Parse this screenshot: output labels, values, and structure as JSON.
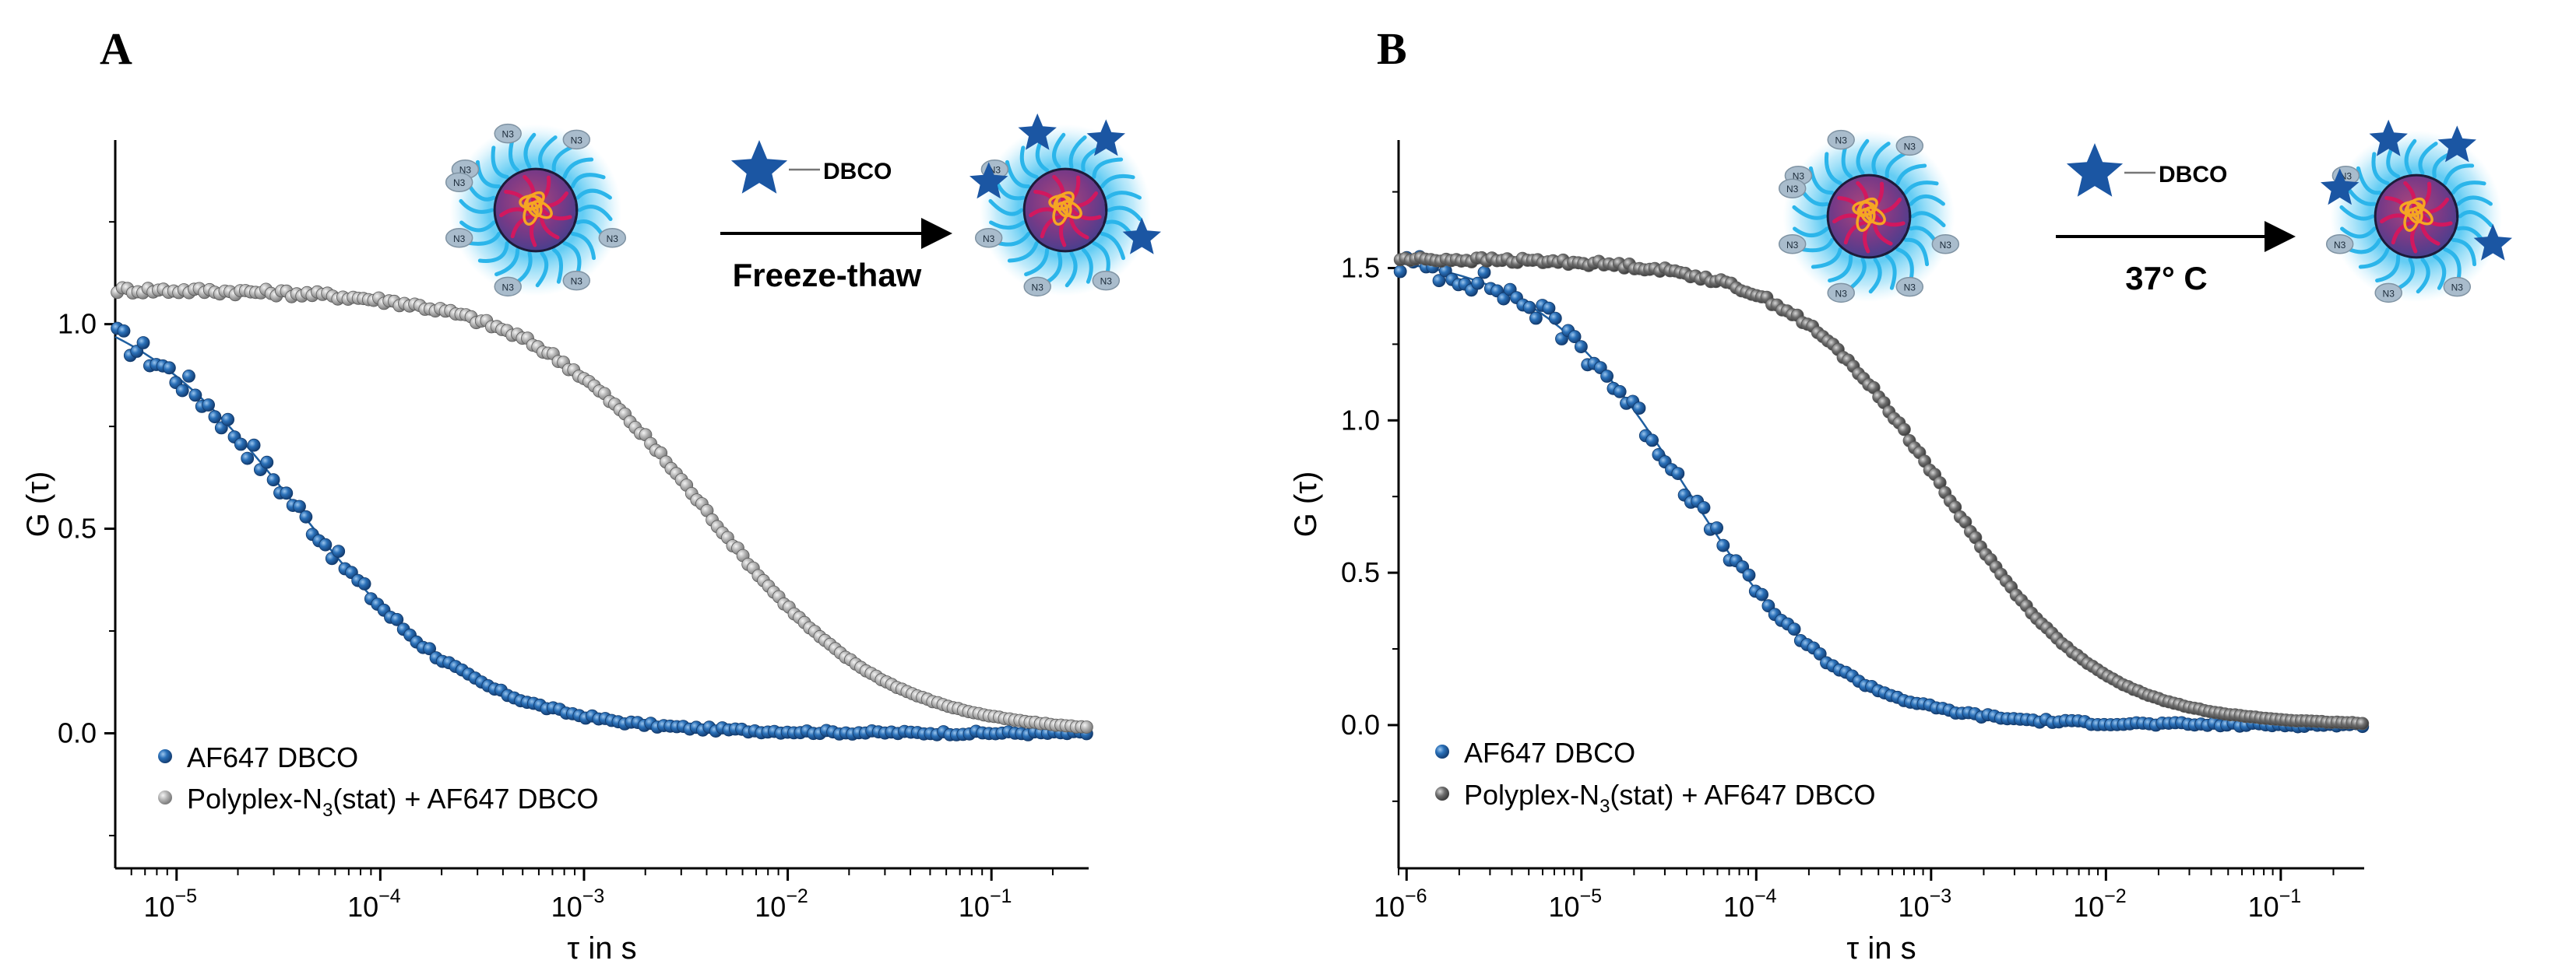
{
  "chart_data": [
    {
      "panel": "A",
      "type": "scatter",
      "xscale": "log",
      "xlabel": "τ in s",
      "ylabel": "G (τ)",
      "xlim": [
        5e-06,
        0.3
      ],
      "ylim": [
        -0.33,
        1.45
      ],
      "yticks": [
        "1.0",
        "0.5",
        "0.0"
      ],
      "ytick_values": [
        1.0,
        0.5,
        0.0
      ],
      "xtick_labels": [
        {
          "base": "10",
          "exp": "−5",
          "value": 1e-05
        },
        {
          "base": "10",
          "exp": "−4",
          "value": 0.0001
        },
        {
          "base": "10",
          "exp": "−3",
          "value": 0.001
        },
        {
          "base": "10",
          "exp": "−2",
          "value": 0.01
        },
        {
          "base": "10",
          "exp": "−1",
          "value": 0.1
        }
      ],
      "legend_position": "bottom-left",
      "series": [
        {
          "name": "AF647 DBCO",
          "color": "#1f5fa0",
          "fit": {
            "model": "diffusion",
            "G0": 1.09,
            "tauD": 4e-05
          },
          "noise": 0.03,
          "offset": 0.0
        },
        {
          "name": "Polyplex-N3(stat) + AF647 DBCO",
          "name_parts": [
            "Polyplex-N",
            "3",
            "(stat) + AF647 DBCO"
          ],
          "color": "#a9a9a9",
          "fit": {
            "model": "diffusion",
            "G0": 1.085,
            "tauD": 0.004
          },
          "noise": 0.008,
          "offset": 0.0
        }
      ],
      "inset": {
        "reagent_label": "DBCO",
        "arrow_label": "Freeze-thaw",
        "n3_label": "N3"
      }
    },
    {
      "panel": "B",
      "type": "scatter",
      "xscale": "log",
      "xlabel": "τ in s",
      "ylabel": "G (τ)",
      "xlim": [
        9e-07,
        0.3
      ],
      "ylim": [
        -0.47,
        1.92
      ],
      "yticks": [
        "1.5",
        "1.0",
        "0.5",
        "0.0"
      ],
      "ytick_values": [
        1.5,
        1.0,
        0.5,
        0.0
      ],
      "xtick_labels": [
        {
          "base": "10",
          "exp": "−6",
          "value": 1e-06
        },
        {
          "base": "10",
          "exp": "−5",
          "value": 1e-05
        },
        {
          "base": "10",
          "exp": "−4",
          "value": 0.0001
        },
        {
          "base": "10",
          "exp": "−3",
          "value": 0.001
        },
        {
          "base": "10",
          "exp": "−2",
          "value": 0.01
        },
        {
          "base": "10",
          "exp": "−1",
          "value": 0.1
        }
      ],
      "legend_position": "bottom-left",
      "series": [
        {
          "name": "AF647 DBCO",
          "color": "#1f5fa0",
          "fit": {
            "model": "diffusion",
            "G0": 1.55,
            "tauD": 4e-05
          },
          "noise": 0.04,
          "offset": 0.0
        },
        {
          "name": "Polyplex-N3(stat) + AF647 DBCO",
          "name_parts": [
            "Polyplex-N",
            "3",
            "(stat) + AF647 DBCO"
          ],
          "color": "#6b6b6b",
          "fit": {
            "model": "diffusion",
            "G0": 1.53,
            "tauD": 0.0012
          },
          "noise": 0.008,
          "offset": 0.0
        }
      ],
      "inset": {
        "reagent_label": "DBCO",
        "arrow_label": "37° C",
        "n3_label": "N3"
      }
    }
  ],
  "colors": {
    "shell": "#2bb5ea",
    "shell_glow": "#7fd8f7",
    "core": "#7a3a86",
    "core_strands": "#d1185f",
    "cargo": "#f5a623",
    "star": "#1b56a3",
    "n3_bead": "#a9bccc"
  }
}
